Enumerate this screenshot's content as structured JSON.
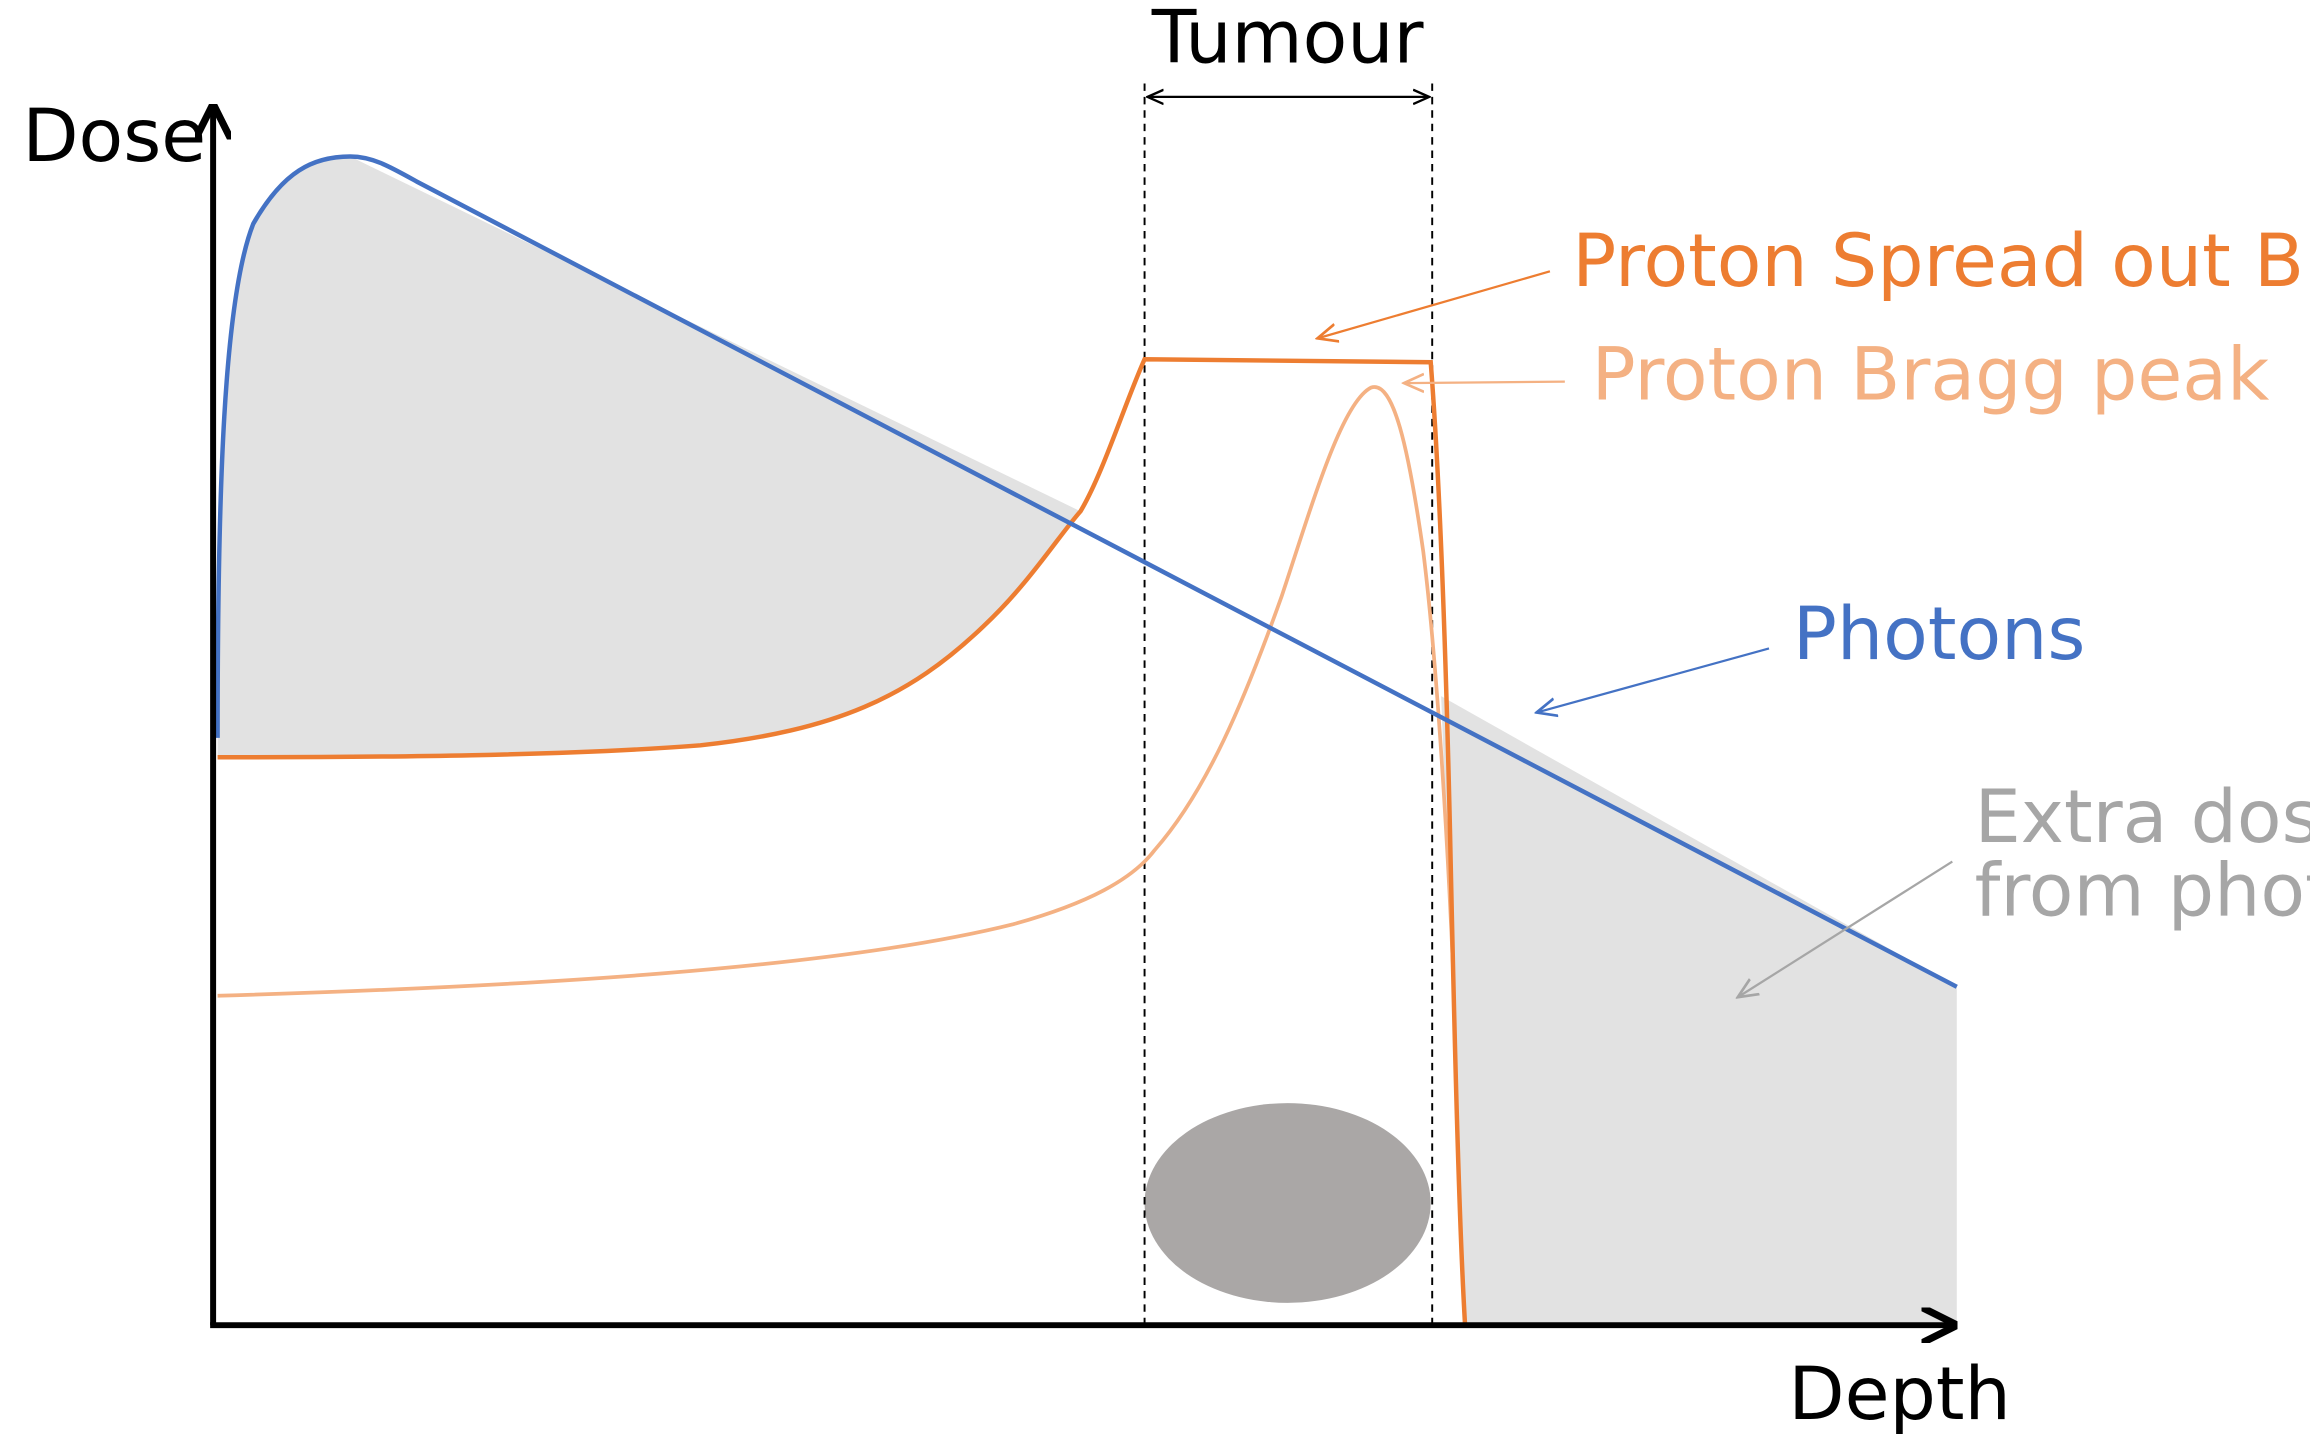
{
  "diagram": {
    "axes": {
      "y_label": "Dose",
      "x_label": "Depth"
    },
    "tumour_label": "Tumour",
    "labels": {
      "sobp": "Proton Spread out Bragg peak",
      "bragg": "Proton Bragg peak",
      "photons": "Photons",
      "extra_dose_line1": "Extra dose",
      "extra_dose_line2": "from photons"
    },
    "colors": {
      "photons": "#4472C4",
      "sobp": "#ED7D31",
      "bragg": "#F4B183",
      "shading": "#E2E2E2",
      "tumour": "#AAA7A6",
      "extra_dose": "#A6A6A6"
    },
    "icons": [
      "tumour-ellipse-icon"
    ]
  }
}
